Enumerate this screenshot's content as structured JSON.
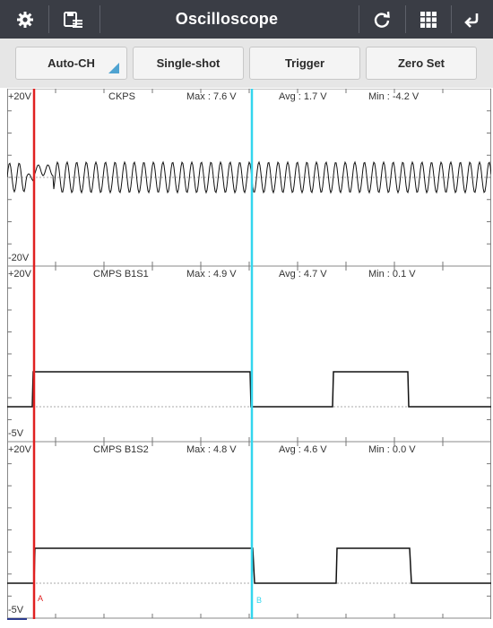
{
  "header": {
    "title": "Oscilloscope",
    "icons": [
      "gear-icon",
      "save-list-icon",
      "refresh-icon",
      "grid-icon",
      "back-icon"
    ]
  },
  "buttons": {
    "auto_ch": "Auto-CH",
    "single_shot": "Single-shot",
    "trigger": "Trigger",
    "zero_set": "Zero Set"
  },
  "channels": [
    {
      "name": "CKPS",
      "max": "Max : 7.6 V",
      "avg": "Avg : 1.7 V",
      "min": "Min : -4.2 V",
      "top": "+20V",
      "bottom": "-20V"
    },
    {
      "name": "CMPS B1S1",
      "max": "Max : 4.9 V",
      "avg": "Avg : 4.7 V",
      "min": "Min : 0.1 V",
      "top": "+20V",
      "bottom": "-5V"
    },
    {
      "name": "CMPS B1S2",
      "max": "Max : 4.8 V",
      "avg": "Avg : 4.6 V",
      "min": "Min : 0.0 V",
      "top": "+20V",
      "bottom": "-5V"
    }
  ],
  "cursors": {
    "a_label": "A",
    "b_label": "B",
    "a_color": "#e02020",
    "b_color": "#33d6ee"
  },
  "colors": {
    "header_bg": "#3a3d45",
    "accent": "#4fa3d1",
    "waveform": "#111111"
  }
}
